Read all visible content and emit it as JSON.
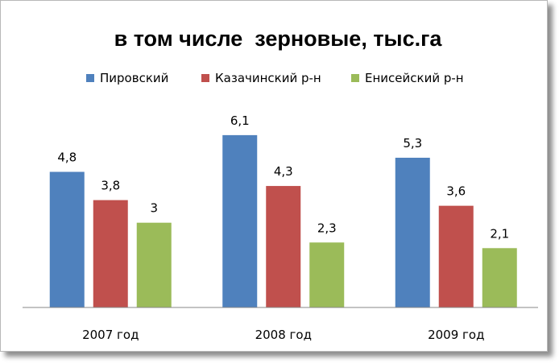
{
  "chart_data": {
    "type": "bar",
    "title": "в том числе  зерновые, тыс.га",
    "categories": [
      "2007 год",
      "2008 год",
      "2009 год"
    ],
    "series": [
      {
        "name": "Пировский",
        "color": "#4f81bd",
        "values": [
          4.8,
          6.1,
          5.3
        ],
        "labels": [
          "4,8",
          "6,1",
          "5,3"
        ]
      },
      {
        "name": "Казачинский р-н",
        "color": "#c0504d",
        "values": [
          3.8,
          4.3,
          3.6
        ],
        "labels": [
          "3,8",
          "4,3",
          "3,6"
        ]
      },
      {
        "name": "Енисейский р-н",
        "color": "#9bbb59",
        "values": [
          3,
          2.3,
          2.1
        ],
        "labels": [
          "3",
          "2,3",
          "2,1"
        ]
      }
    ],
    "ylim": [
      0,
      7
    ],
    "grid": false,
    "legend_position": "top"
  }
}
